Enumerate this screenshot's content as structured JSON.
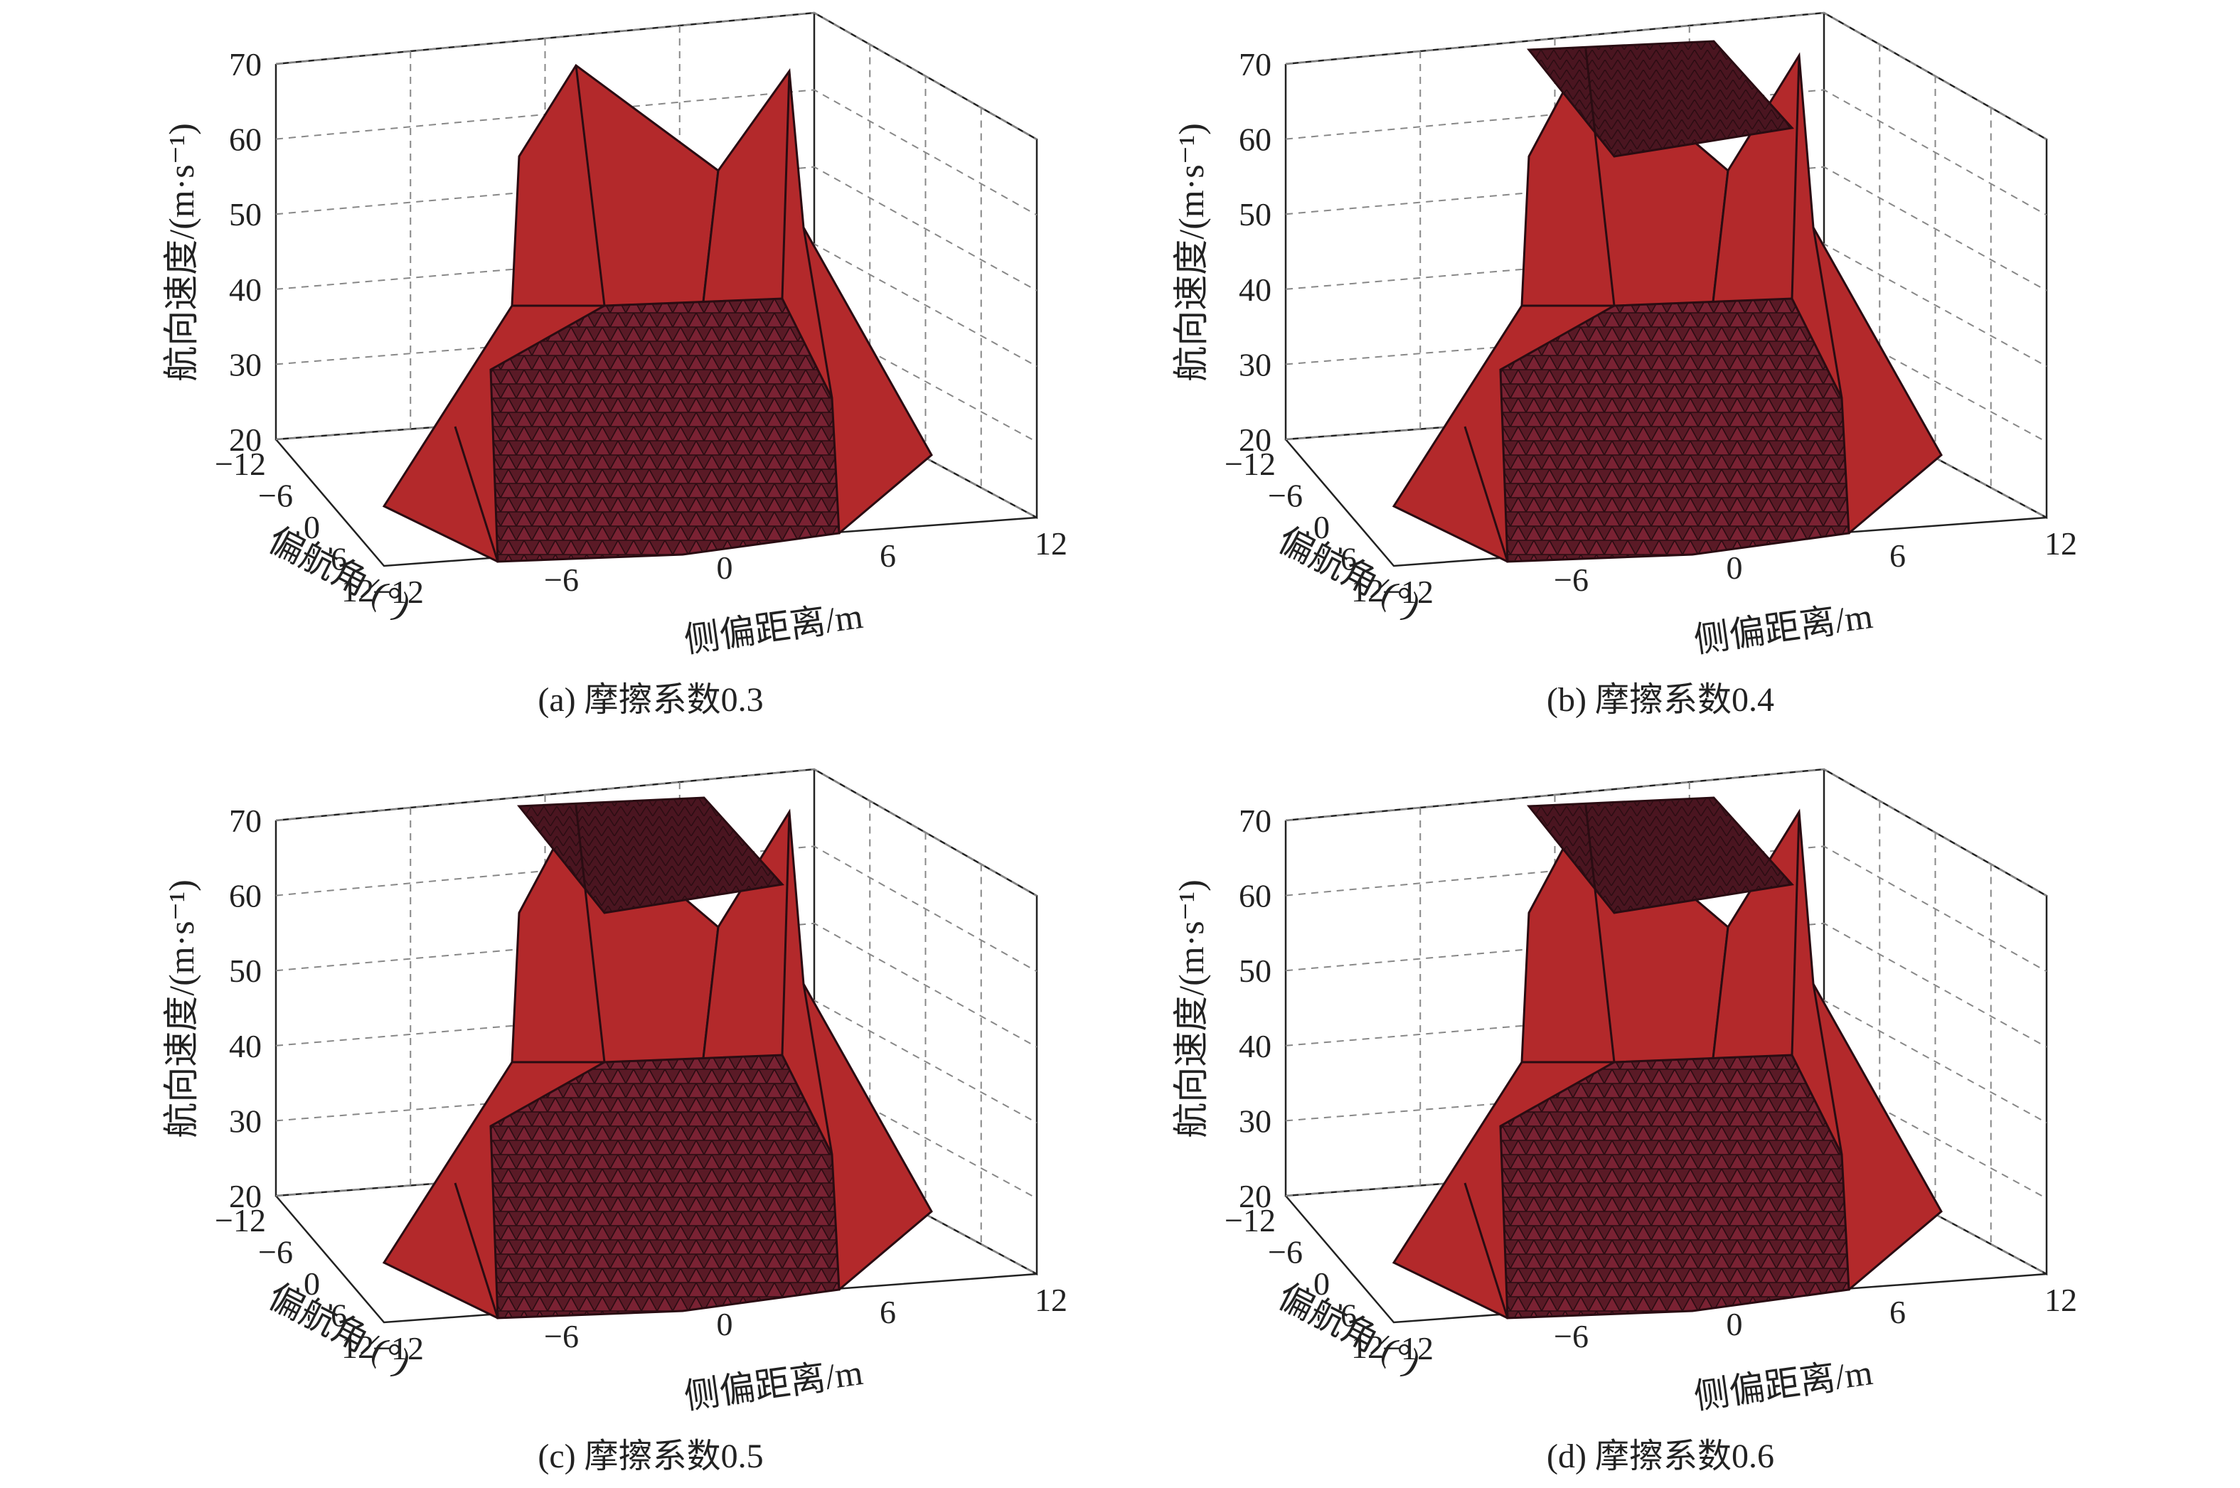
{
  "figure": {
    "axis_labels": {
      "z": "航向速度/(m·s⁻¹)",
      "x": "侧偏距离/m",
      "y": "偏航角/(°)"
    }
  },
  "chart_data": [
    {
      "type": "surface3d",
      "caption": "(a) 摩擦系数0.3",
      "xlabel": "侧偏距离/m",
      "ylabel": "偏航角/(°)",
      "zlabel": "航向速度/(m·s⁻¹)",
      "x_ticks": [
        "−12",
        "−6",
        "0",
        "6",
        "12"
      ],
      "y_ticks": [
        "−12",
        "−6",
        "0",
        "6",
        "12"
      ],
      "z_ticks": [
        "20",
        "30",
        "40",
        "50",
        "60",
        "70"
      ],
      "xlim": [
        -12,
        12
      ],
      "ylim": [
        -12,
        12
      ],
      "zlim": [
        20,
        70
      ],
      "grid": true,
      "surface_color": "#b3292b",
      "peak_speed": 70
    },
    {
      "type": "surface3d",
      "caption": "(b) 摩擦系数0.4",
      "xlabel": "侧偏距离/m",
      "ylabel": "偏航角/(°)",
      "zlabel": "航向速度/(m·s⁻¹)",
      "x_ticks": [
        "−12",
        "−6",
        "0",
        "6",
        "12"
      ],
      "y_ticks": [
        "−12",
        "−6",
        "0",
        "6",
        "12"
      ],
      "z_ticks": [
        "20",
        "30",
        "40",
        "50",
        "60",
        "70"
      ],
      "xlim": [
        -12,
        12
      ],
      "ylim": [
        -12,
        12
      ],
      "zlim": [
        20,
        70
      ],
      "grid": true,
      "surface_color": "#b3292b",
      "peak_speed": 70
    },
    {
      "type": "surface3d",
      "caption": "(c) 摩擦系数0.5",
      "xlabel": "侧偏距离/m",
      "ylabel": "偏航角/(°)",
      "zlabel": "航向速度/(m·s⁻¹)",
      "x_ticks": [
        "−12",
        "−6",
        "0",
        "6",
        "12"
      ],
      "y_ticks": [
        "−12",
        "−6",
        "0",
        "6",
        "12"
      ],
      "z_ticks": [
        "20",
        "30",
        "40",
        "50",
        "60",
        "70"
      ],
      "xlim": [
        -12,
        12
      ],
      "ylim": [
        -12,
        12
      ],
      "zlim": [
        20,
        70
      ],
      "grid": true,
      "surface_color": "#b3292b",
      "peak_speed": 70
    },
    {
      "type": "surface3d",
      "caption": "(d) 摩擦系数0.6",
      "xlabel": "侧偏距离/m",
      "ylabel": "偏航角/(°)",
      "zlabel": "航向速度/(m·s⁻¹)",
      "x_ticks": [
        "−12",
        "−6",
        "0",
        "6",
        "12"
      ],
      "y_ticks": [
        "−12",
        "−6",
        "0",
        "6",
        "12"
      ],
      "z_ticks": [
        "20",
        "30",
        "40",
        "50",
        "60",
        "70"
      ],
      "xlim": [
        -12,
        12
      ],
      "ylim": [
        -12,
        12
      ],
      "zlim": [
        20,
        70
      ],
      "grid": true,
      "surface_color": "#b3292b",
      "peak_speed": 70
    }
  ]
}
